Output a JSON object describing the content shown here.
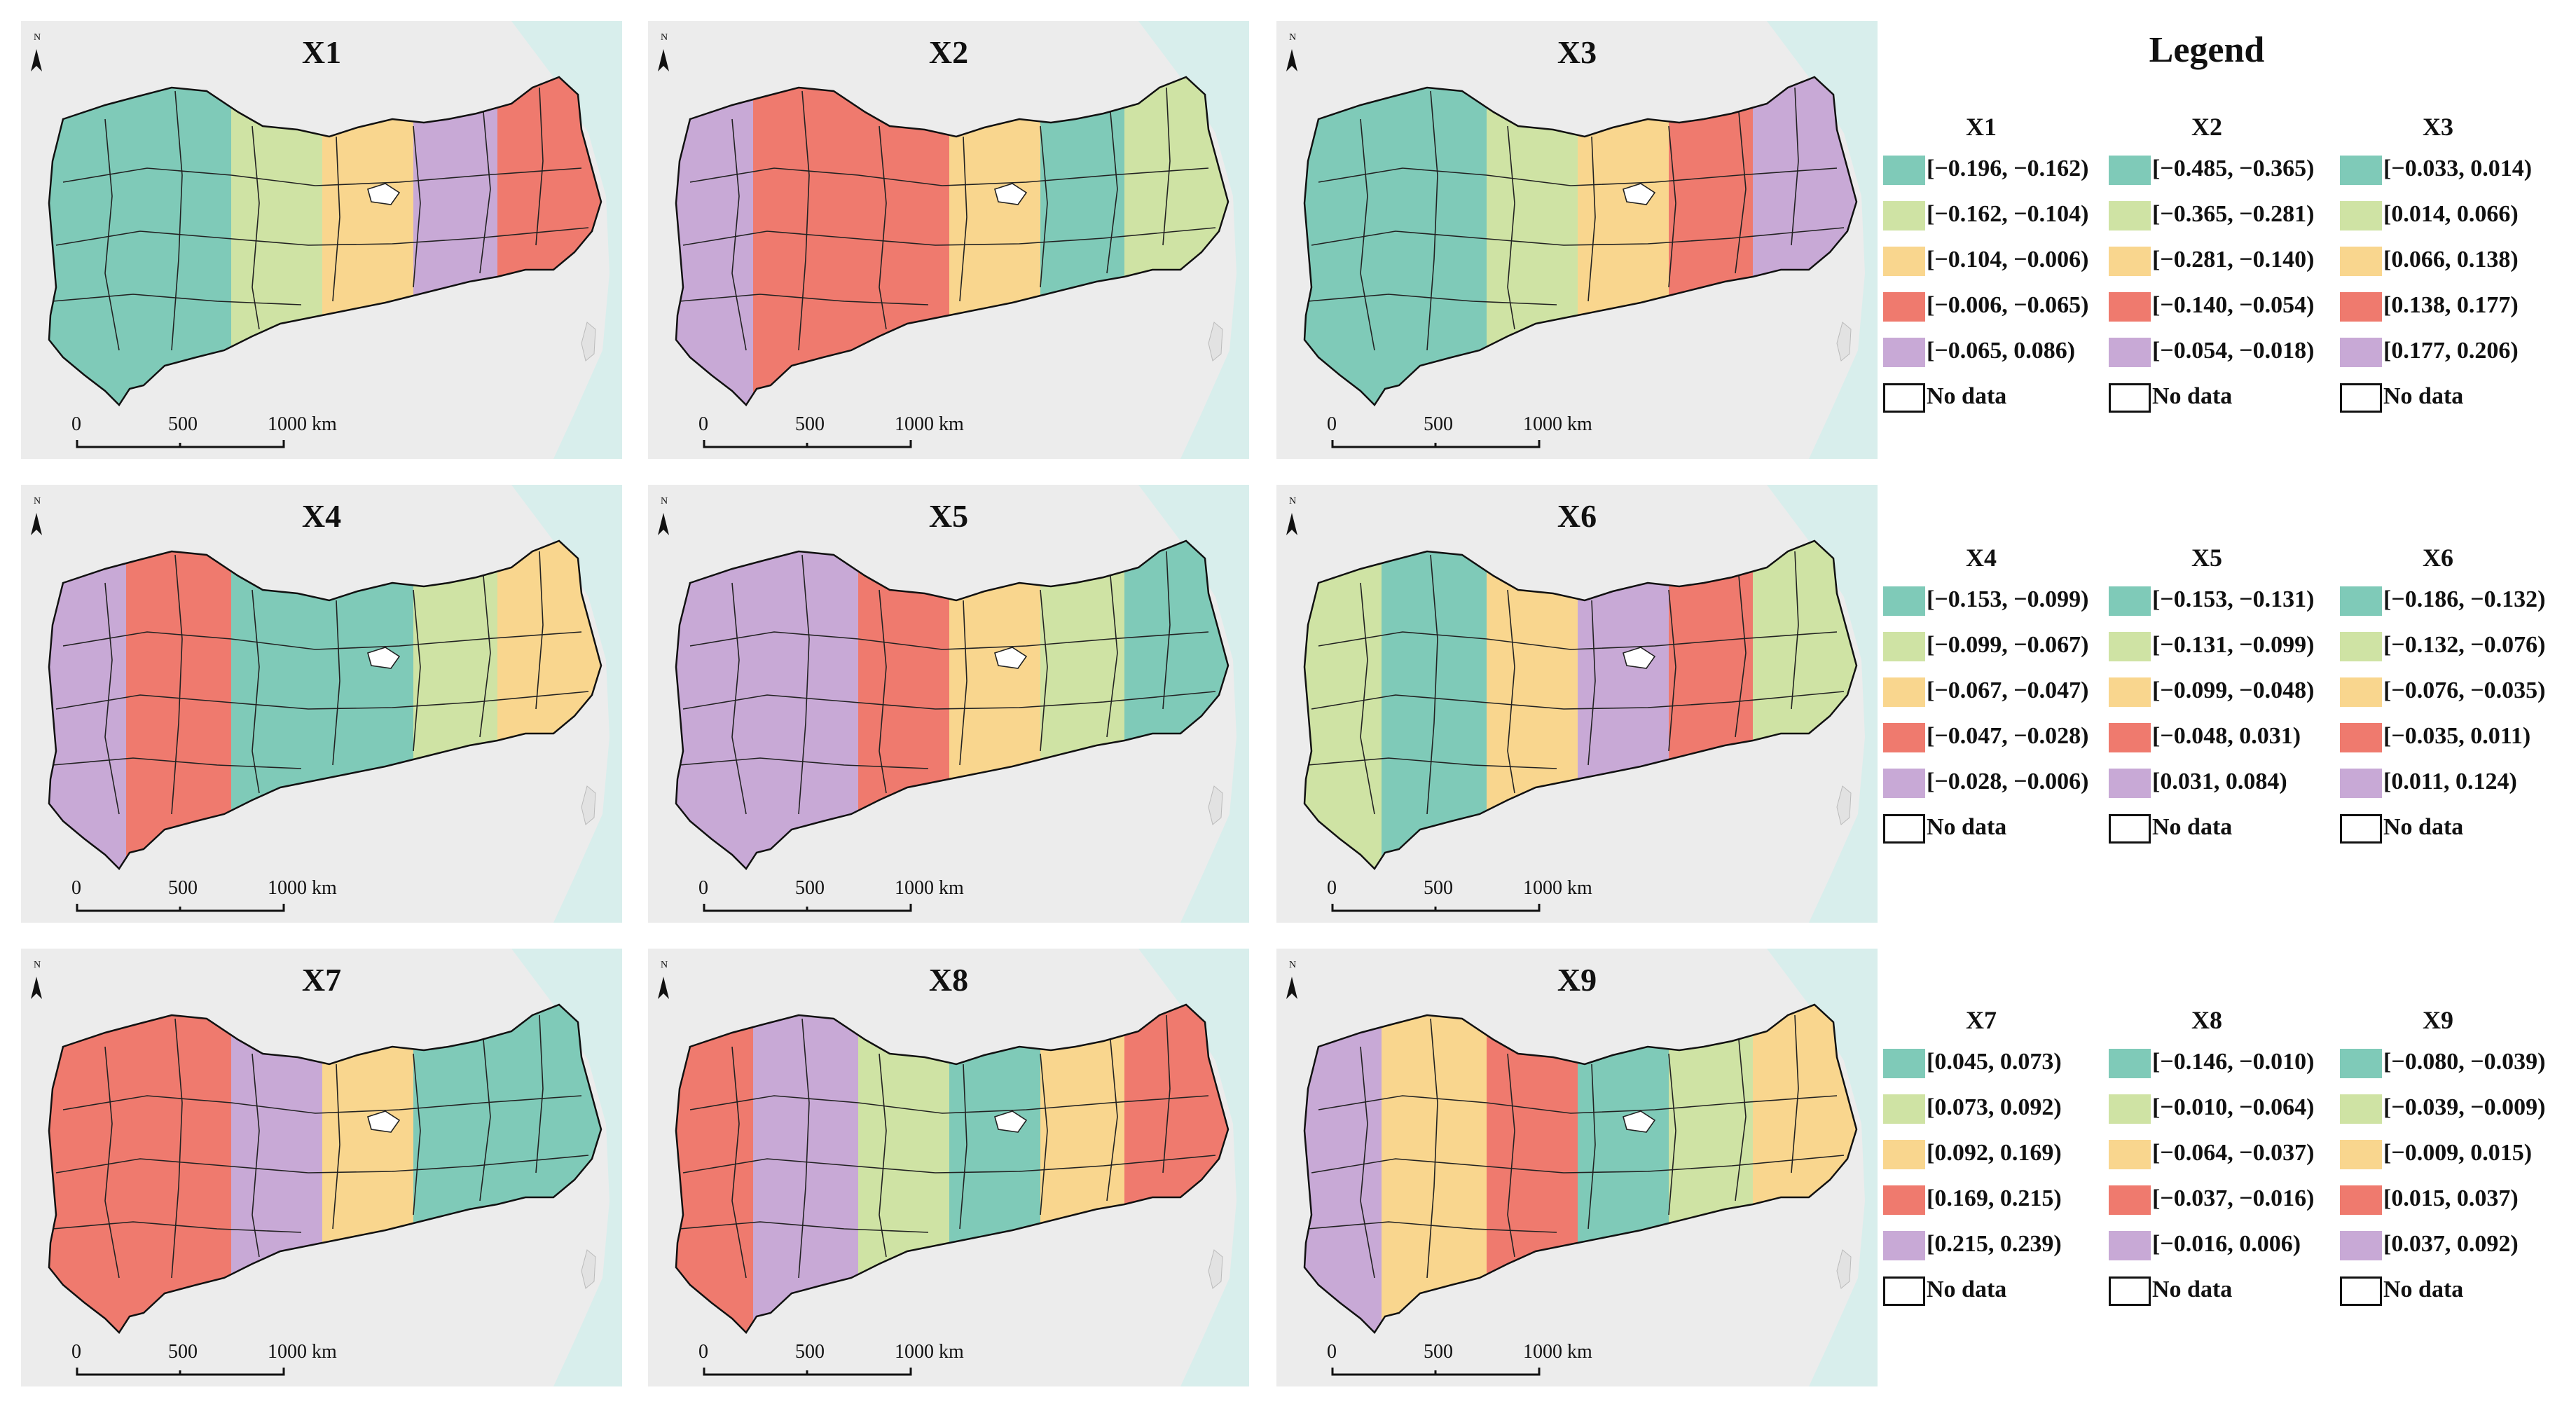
{
  "colors": {
    "teal": "#7fcab8",
    "green": "#cfe3a4",
    "yellow": "#f9d68e",
    "red": "#ef7a6e",
    "purple": "#c8a9d6",
    "sea": "#d8eeec",
    "land": "#ececec",
    "nodata": "#ffffff"
  },
  "legend": {
    "title": "Legend",
    "no_data_label": "No data",
    "groups": [
      {
        "name": "X1",
        "ranges": [
          "[−0.196, −0.162)",
          "[−0.162, −0.104)",
          "[−0.104, −0.006)",
          "[−0.006, −0.065)",
          "[−0.065, 0.086)"
        ]
      },
      {
        "name": "X2",
        "ranges": [
          "[−0.485, −0.365)",
          "[−0.365, −0.281)",
          "[−0.281, −0.140)",
          "[−0.140, −0.054)",
          "[−0.054, −0.018)"
        ]
      },
      {
        "name": "X3",
        "ranges": [
          "[−0.033, 0.014)",
          "[0.014, 0.066)",
          "[0.066, 0.138)",
          "[0.138, 0.177)",
          "[0.177, 0.206)"
        ]
      },
      {
        "name": "X4",
        "ranges": [
          "[−0.153, −0.099)",
          "[−0.099, −0.067)",
          "[−0.067, −0.047)",
          "[−0.047, −0.028)",
          "[−0.028, −0.006)"
        ]
      },
      {
        "name": "X5",
        "ranges": [
          "[−0.153, −0.131)",
          "[−0.131, −0.099)",
          "[−0.099, −0.048)",
          "[−0.048, 0.031)",
          "[0.031, 0.084)"
        ]
      },
      {
        "name": "X6",
        "ranges": [
          "[−0.186, −0.132)",
          "[−0.132, −0.076)",
          "[−0.076, −0.035)",
          "[−0.035, 0.011)",
          "[0.011, 0.124)"
        ]
      },
      {
        "name": "X7",
        "ranges": [
          "[0.045, 0.073)",
          "[0.073, 0.092)",
          "[0.092, 0.169)",
          "[0.169, 0.215)",
          "[0.215, 0.239)"
        ]
      },
      {
        "name": "X8",
        "ranges": [
          "[−0.146, −0.010)",
          "[−0.010, −0.064)",
          "[−0.064, −0.037)",
          "[−0.037, −0.016)",
          "[−0.016, 0.006)"
        ]
      },
      {
        "name": "X9",
        "ranges": [
          "[−0.080, −0.039)",
          "[−0.039, −0.009)",
          "[−0.009, 0.015)",
          "[0.015, 0.037)",
          "[0.037, 0.092)"
        ]
      }
    ]
  },
  "maps": [
    {
      "title": "X1",
      "zones": [
        "teal",
        "teal",
        "green",
        "yellow",
        "purple",
        "red"
      ]
    },
    {
      "title": "X2",
      "zones": [
        "purple",
        "red",
        "red",
        "yellow",
        "teal",
        "green"
      ]
    },
    {
      "title": "X3",
      "zones": [
        "teal",
        "teal",
        "green",
        "yellow",
        "red",
        "purple"
      ]
    },
    {
      "title": "X4",
      "zones": [
        "purple",
        "red",
        "teal",
        "teal",
        "green",
        "yellow"
      ]
    },
    {
      "title": "X5",
      "zones": [
        "purple",
        "purple",
        "red",
        "yellow",
        "green",
        "teal"
      ]
    },
    {
      "title": "X6",
      "zones": [
        "green",
        "teal",
        "yellow",
        "purple",
        "red",
        "green"
      ]
    },
    {
      "title": "X7",
      "zones": [
        "red",
        "red",
        "purple",
        "yellow",
        "teal",
        "teal"
      ]
    },
    {
      "title": "X8",
      "zones": [
        "red",
        "purple",
        "green",
        "teal",
        "yellow",
        "red"
      ]
    },
    {
      "title": "X9",
      "zones": [
        "purple",
        "yellow",
        "red",
        "teal",
        "green",
        "yellow"
      ]
    }
  ],
  "scale_bar": {
    "labels": [
      "0",
      "500",
      "1000 km"
    ]
  },
  "north_label": "N"
}
